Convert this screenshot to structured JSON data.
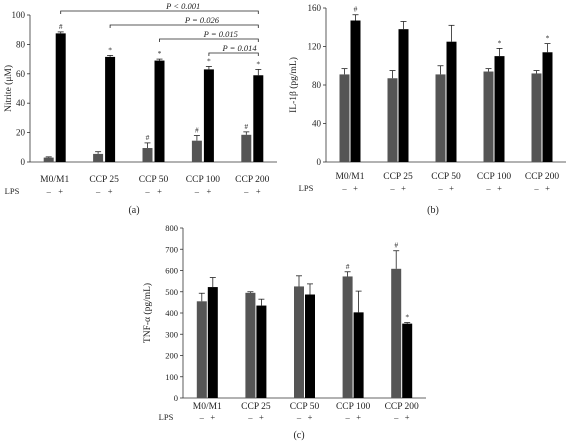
{
  "chart_data": [
    {
      "type": "bar",
      "panel_label": "(a)",
      "ylabel": "Nitrite (μM)",
      "ylim": [
        0,
        100
      ],
      "yticks": [
        0,
        20,
        40,
        60,
        80,
        100
      ],
      "categories": [
        "M0/M1",
        "CCP 25",
        "CCP 50",
        "CCP 100",
        "CCP 200"
      ],
      "lps_row_label": "LPS",
      "lps_marks": [
        "–",
        "+"
      ],
      "series": [
        {
          "name": "LPS –",
          "color": "#555555",
          "values": [
            3,
            5.5,
            9.5,
            14.5,
            18.5
          ],
          "errors": [
            0.5,
            1.5,
            3.5,
            3.5,
            2
          ],
          "markers": [
            "",
            "",
            "#",
            "#",
            "#"
          ]
        },
        {
          "name": "LPS +",
          "color": "#000000",
          "values": [
            87.5,
            71.5,
            69,
            63,
            59
          ],
          "errors": [
            1,
            1,
            1,
            2,
            4
          ],
          "markers": [
            "#",
            "*",
            "*",
            "*",
            "*"
          ]
        }
      ],
      "annotations": [
        {
          "from": "M0/M1",
          "to": "CCP 200",
          "label": "P < 0.001"
        },
        {
          "from": "CCP 25",
          "to": "CCP 200",
          "label": "P = 0.026"
        },
        {
          "from": "CCP 50",
          "to": "CCP 200",
          "label": "P = 0.015"
        },
        {
          "from": "CCP 100",
          "to": "CCP 200",
          "label": "P = 0.014"
        }
      ]
    },
    {
      "type": "bar",
      "panel_label": "(b)",
      "ylabel": "IL-1β (pg/mL)",
      "ylim": [
        0,
        160
      ],
      "yticks": [
        0,
        40,
        80,
        120,
        160
      ],
      "categories": [
        "M0/M1",
        "CCP 25",
        "CCP 50",
        "CCP 100",
        "CCP 200"
      ],
      "lps_row_label": "LPS",
      "lps_marks": [
        "–",
        "+"
      ],
      "series": [
        {
          "name": "LPS –",
          "color": "#555555",
          "values": [
            91,
            87,
            91,
            94,
            92
          ],
          "errors": [
            6,
            8,
            9,
            3,
            3
          ],
          "markers": [
            "",
            "",
            "",
            "",
            ""
          ]
        },
        {
          "name": "LPS +",
          "color": "#000000",
          "values": [
            147,
            138,
            125,
            110,
            114
          ],
          "errors": [
            6,
            8,
            17,
            8,
            9
          ],
          "markers": [
            "#",
            "",
            "",
            "*",
            "*"
          ]
        }
      ],
      "annotations": []
    },
    {
      "type": "bar",
      "panel_label": "(c)",
      "ylabel": "TNF-α (pg/mL)",
      "ylim": [
        0,
        800
      ],
      "yticks": [
        0,
        100,
        200,
        300,
        400,
        500,
        600,
        700,
        800
      ],
      "categories": [
        "M0/M1",
        "CCP 25",
        "CCP 50",
        "CCP 100",
        "CCP 200"
      ],
      "lps_row_label": "LPS",
      "lps_marks": [
        "–",
        "+"
      ],
      "series": [
        {
          "name": "LPS –",
          "color": "#555555",
          "values": [
            455,
            495,
            525,
            572,
            608
          ],
          "errors": [
            38,
            5,
            50,
            22,
            85
          ],
          "markers": [
            "",
            "",
            "",
            "#",
            "#"
          ]
        },
        {
          "name": "LPS +",
          "color": "#000000",
          "values": [
            522,
            435,
            487,
            403,
            350
          ],
          "errors": [
            45,
            30,
            50,
            100,
            5
          ],
          "markers": [
            "",
            "",
            "",
            "",
            "*"
          ]
        }
      ],
      "annotations": []
    }
  ]
}
